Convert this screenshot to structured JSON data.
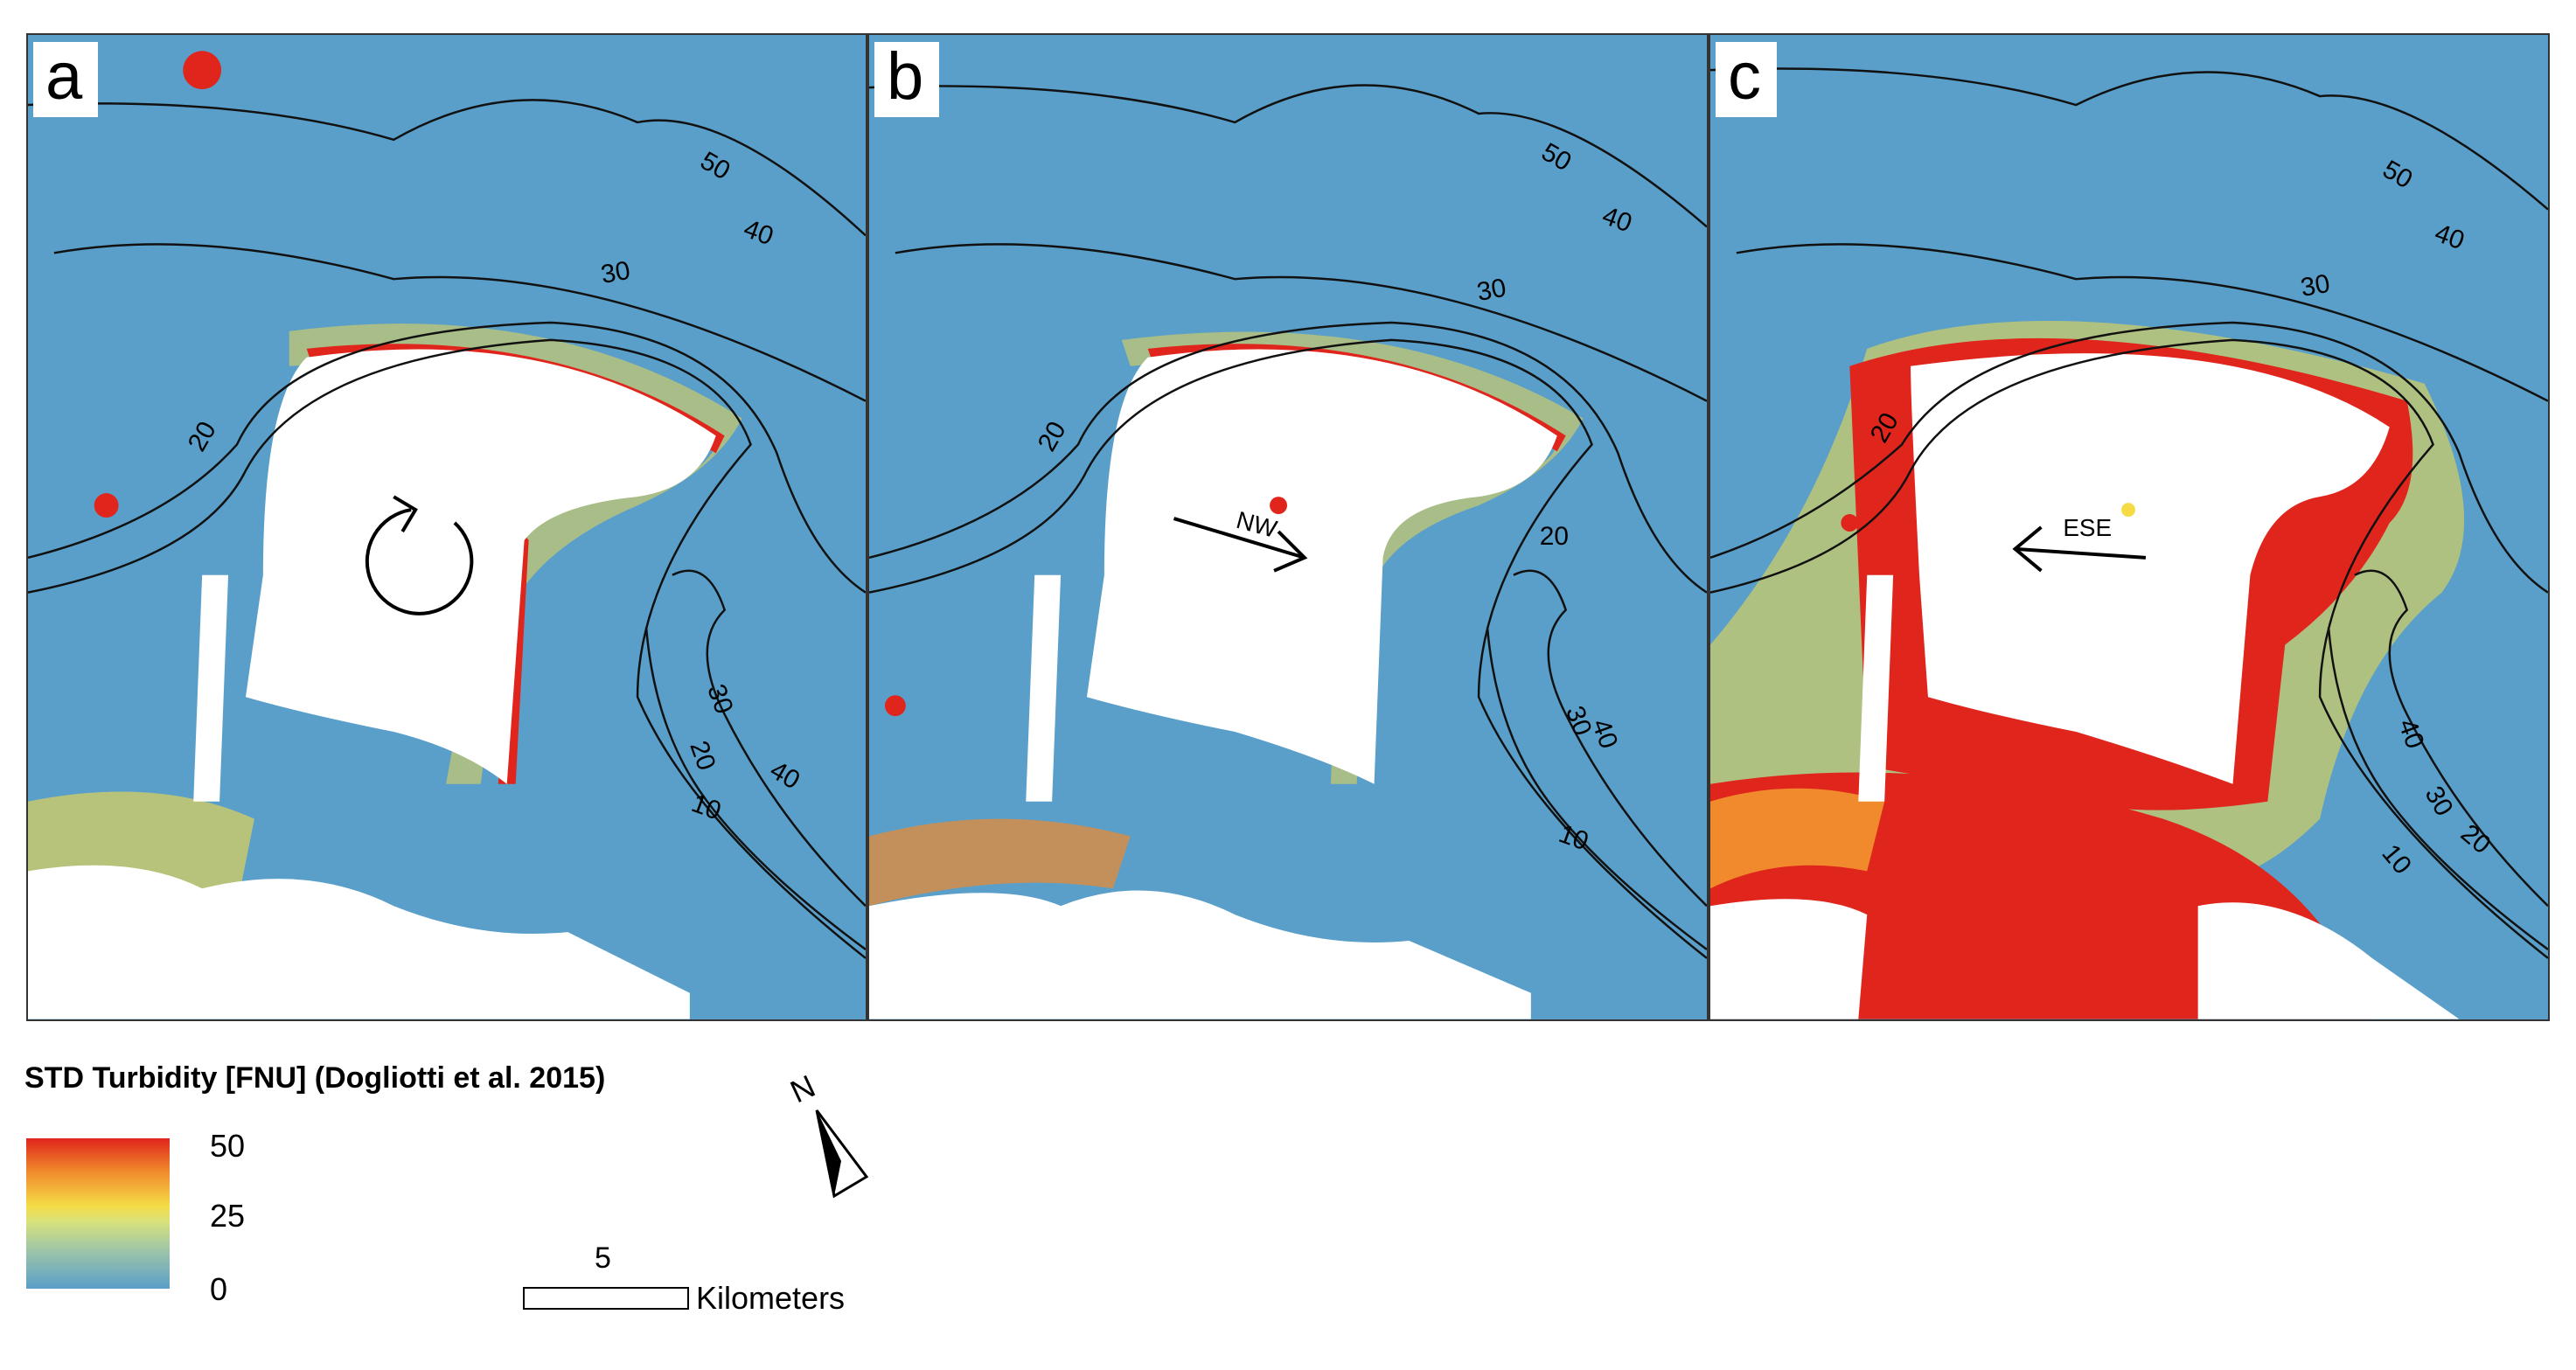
{
  "panels": [
    {
      "label": "a",
      "contour_labels": [
        "50",
        "40",
        "30",
        "20",
        "30",
        "20",
        "40",
        "10"
      ],
      "current": {
        "type": "rotation",
        "direction": "",
        "icon": "circular-arrow-icon"
      }
    },
    {
      "label": "b",
      "contour_labels": [
        "50",
        "40",
        "30",
        "20",
        "20",
        "30",
        "40",
        "10"
      ],
      "current": {
        "type": "arrow",
        "direction": "NW",
        "icon": "arrow-right-icon"
      }
    },
    {
      "label": "c",
      "contour_labels": [
        "50",
        "40",
        "30",
        "20",
        "40",
        "30",
        "20",
        "10"
      ],
      "current": {
        "type": "arrow",
        "direction": "ESE",
        "icon": "arrow-left-icon"
      }
    }
  ],
  "legend": {
    "title": "STD Turbidity [FNU] (Dogliotti et al. 2015)",
    "max": "50",
    "mid": "25",
    "min": "0",
    "colors": {
      "high": "#e0251c",
      "mid": "#f5dc46",
      "low": "#5a9fc9"
    }
  },
  "scalebar": {
    "value": "5",
    "unit": "Kilometers"
  },
  "north_arrow": {
    "label": "N",
    "icon": "north-arrow-icon"
  }
}
